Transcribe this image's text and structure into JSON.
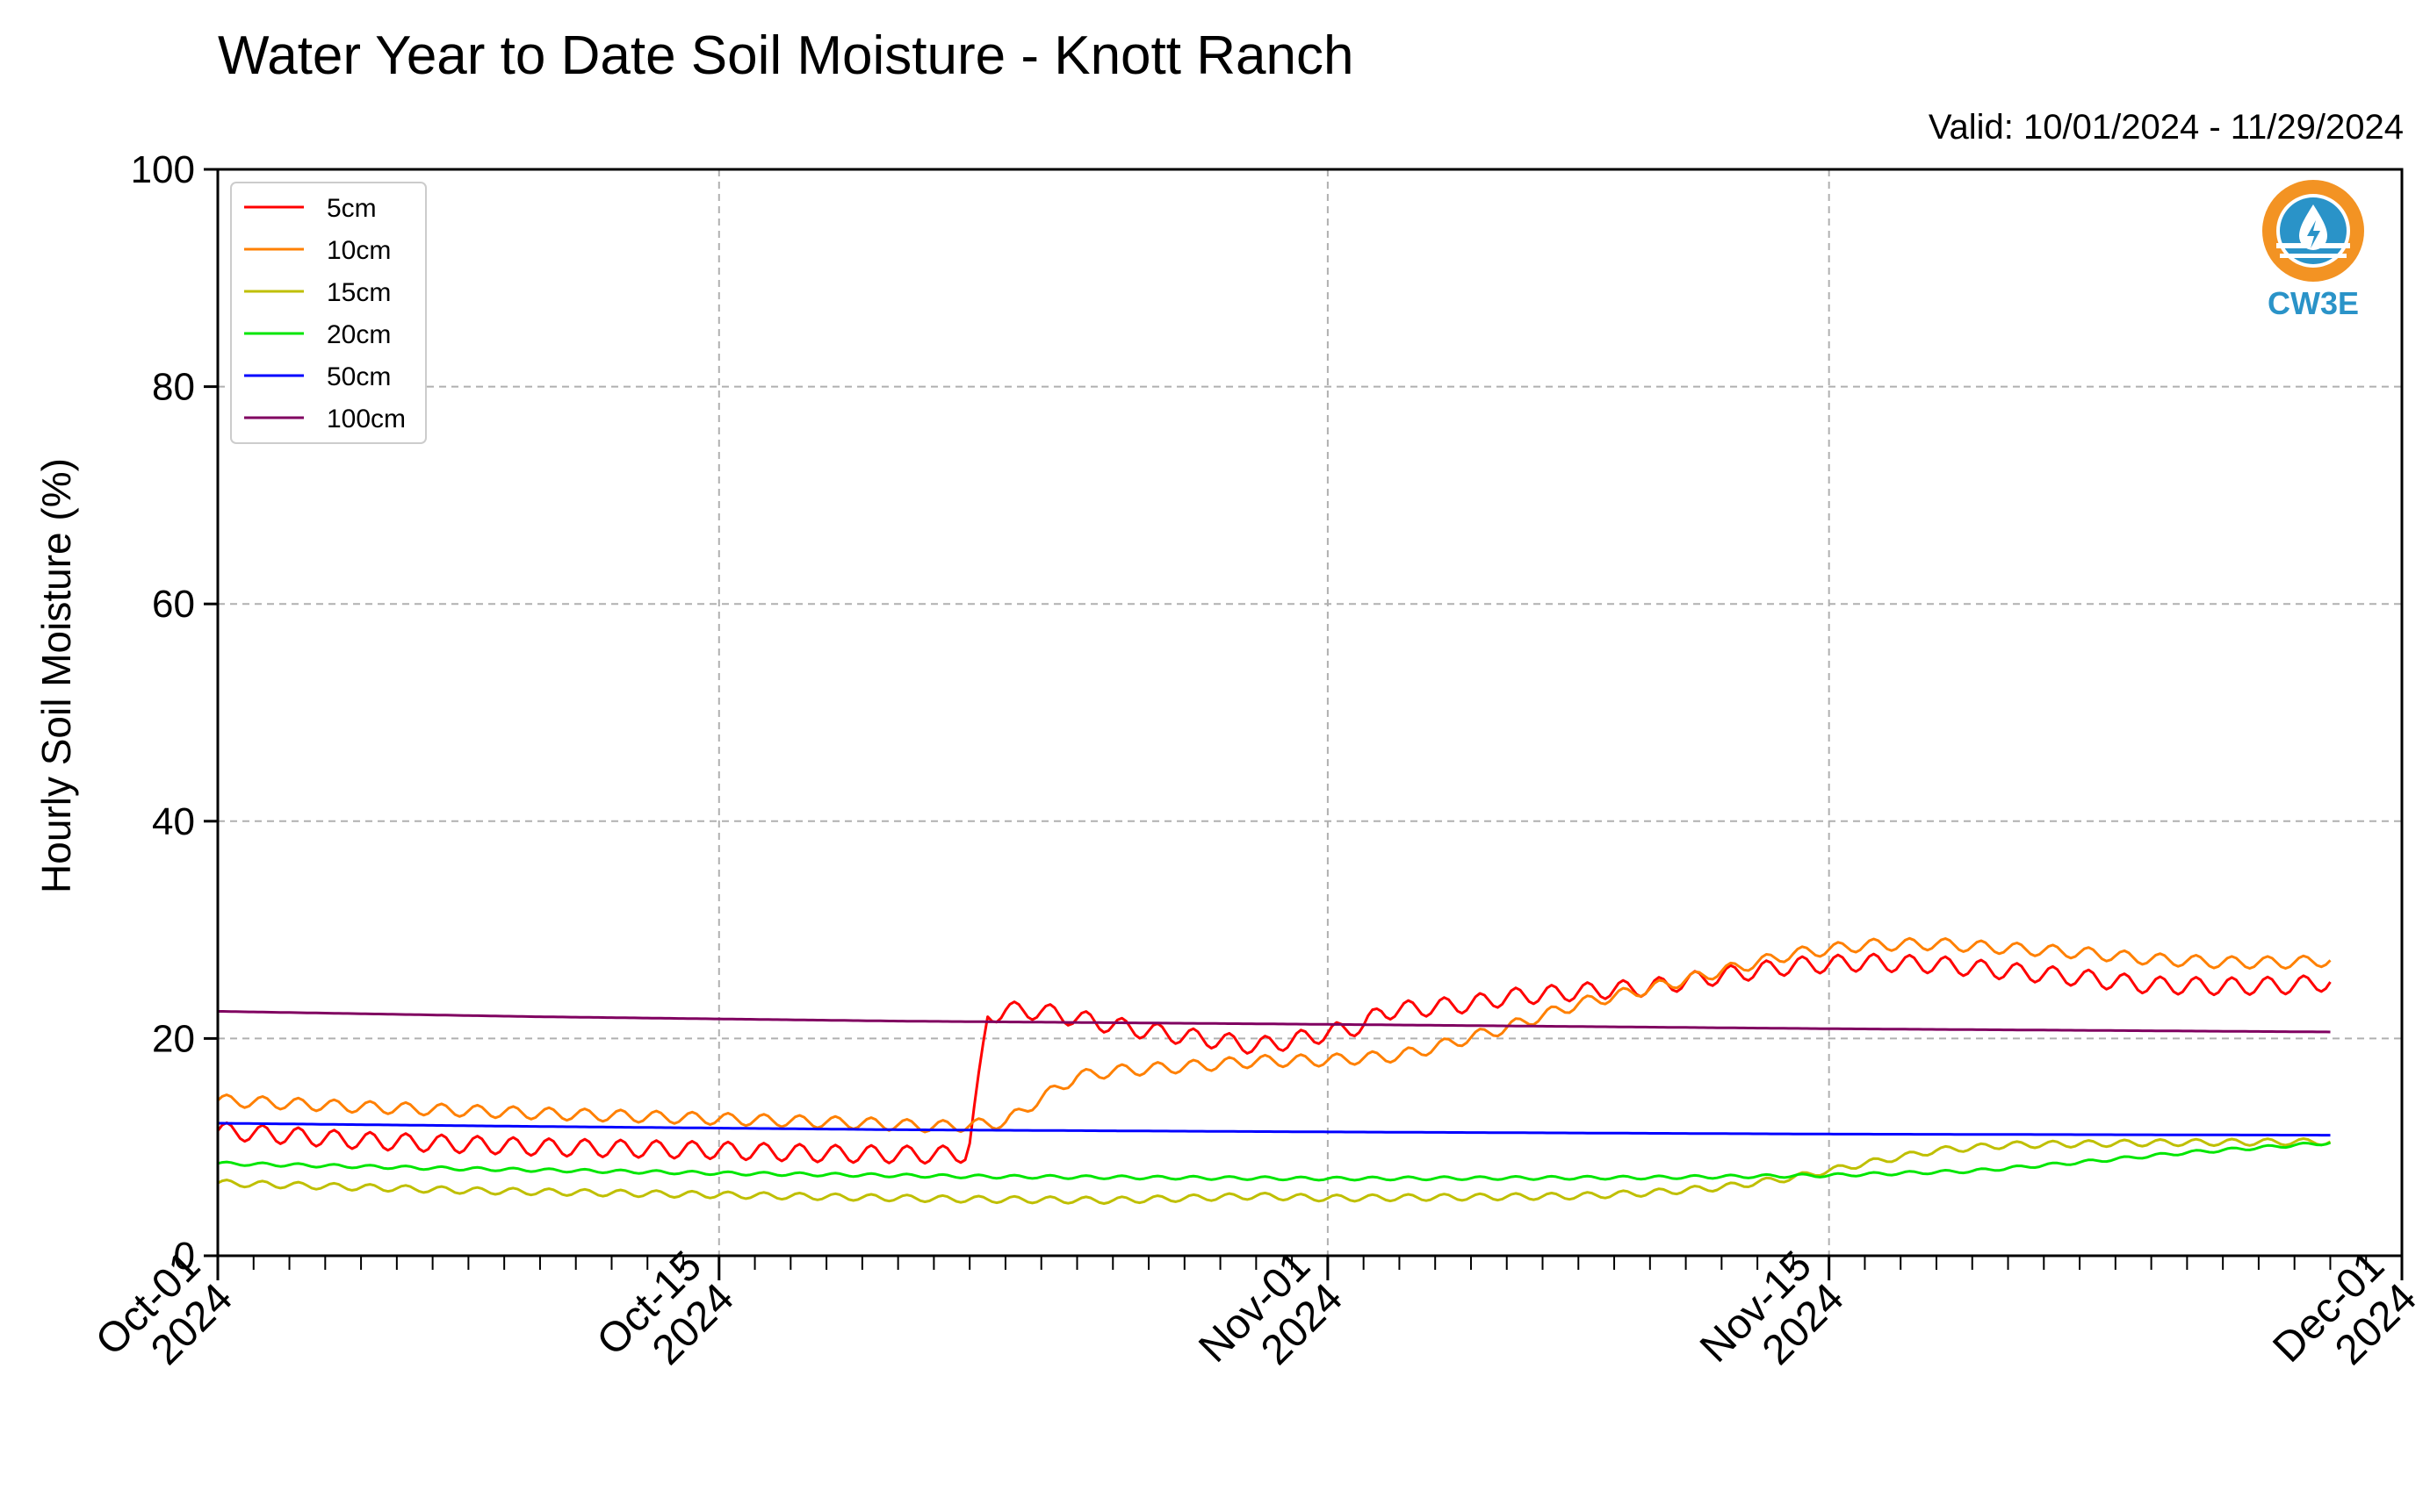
{
  "chart_data": {
    "type": "line",
    "title": "Water Year to Date Soil Moisture - Knott Ranch",
    "subtitle": "Valid: 10/01/2024 - 11/29/2024",
    "xlabel": "",
    "ylabel": "Hourly Soil Moisture (%)",
    "xlim": [
      "2024-10-01",
      "2024-12-01"
    ],
    "ylim": [
      0,
      100
    ],
    "yticks": [
      0,
      20,
      40,
      60,
      80,
      100
    ],
    "xticks": [
      {
        "date": "2024-10-01",
        "line1": "Oct-01",
        "line2": "2024"
      },
      {
        "date": "2024-10-15",
        "line1": "Oct-15",
        "line2": "2024"
      },
      {
        "date": "2024-11-01",
        "line1": "Nov-01",
        "line2": "2024"
      },
      {
        "date": "2024-11-15",
        "line1": "Nov-15",
        "line2": "2024"
      },
      {
        "date": "2024-12-01",
        "line1": "Dec-01",
        "line2": "2024"
      }
    ],
    "grid": true,
    "legend_position": "top-left",
    "logo": {
      "text": "CW3E",
      "colors": {
        "orange": "#f39323",
        "blue": "#2a93c8"
      }
    },
    "series": [
      {
        "name": "5cm",
        "color": "#ff0000",
        "diurnal_amplitude": 0.8,
        "points": [
          {
            "x": "2024-10-01",
            "y": 11.5
          },
          {
            "x": "2024-10-05",
            "y": 10.6
          },
          {
            "x": "2024-10-10",
            "y": 10.0
          },
          {
            "x": "2024-10-15",
            "y": 9.7
          },
          {
            "x": "2024-10-18",
            "y": 9.4
          },
          {
            "x": "2024-10-21",
            "y": 9.3
          },
          {
            "x": "2024-10-21T23:00",
            "y": 9.4
          },
          {
            "x": "2024-10-22T06:00",
            "y": 16.0
          },
          {
            "x": "2024-10-22T12:00",
            "y": 22.0
          },
          {
            "x": "2024-10-23",
            "y": 22.6
          },
          {
            "x": "2024-10-24",
            "y": 22.5
          },
          {
            "x": "2024-10-26",
            "y": 21.2
          },
          {
            "x": "2024-10-28",
            "y": 20.2
          },
          {
            "x": "2024-10-29",
            "y": 19.8
          },
          {
            "x": "2024-10-30",
            "y": 19.3
          },
          {
            "x": "2024-10-31",
            "y": 19.8
          },
          {
            "x": "2024-11-01",
            "y": 20.5
          },
          {
            "x": "2024-11-02",
            "y": 21.2
          },
          {
            "x": "2024-11-02T12:00",
            "y": 22.5
          },
          {
            "x": "2024-11-04",
            "y": 22.9
          },
          {
            "x": "2024-11-05",
            "y": 23.2
          },
          {
            "x": "2024-11-06",
            "y": 23.8
          },
          {
            "x": "2024-11-08",
            "y": 24.3
          },
          {
            "x": "2024-11-10",
            "y": 24.7
          },
          {
            "x": "2024-11-12",
            "y": 25.8
          },
          {
            "x": "2024-11-14",
            "y": 26.7
          },
          {
            "x": "2024-11-16",
            "y": 27.0
          },
          {
            "x": "2024-11-18",
            "y": 26.8
          },
          {
            "x": "2024-11-20",
            "y": 26.2
          },
          {
            "x": "2024-11-22",
            "y": 25.6
          },
          {
            "x": "2024-11-24",
            "y": 24.9
          },
          {
            "x": "2024-11-26",
            "y": 24.8
          },
          {
            "x": "2024-11-28",
            "y": 24.9
          },
          {
            "x": "2024-11-29",
            "y": 25.2
          }
        ]
      },
      {
        "name": "10cm",
        "color": "#ff8000",
        "diurnal_amplitude": 0.55,
        "points": [
          {
            "x": "2024-10-01",
            "y": 14.3
          },
          {
            "x": "2024-10-05",
            "y": 13.7
          },
          {
            "x": "2024-10-10",
            "y": 13.1
          },
          {
            "x": "2024-10-15",
            "y": 12.6
          },
          {
            "x": "2024-10-19",
            "y": 12.2
          },
          {
            "x": "2024-10-21",
            "y": 11.9
          },
          {
            "x": "2024-10-22",
            "y": 12.0
          },
          {
            "x": "2024-10-23",
            "y": 12.3
          },
          {
            "x": "2024-10-24",
            "y": 14.5
          },
          {
            "x": "2024-10-25",
            "y": 16.5
          },
          {
            "x": "2024-10-26",
            "y": 17.0
          },
          {
            "x": "2024-10-28",
            "y": 17.4
          },
          {
            "x": "2024-10-30",
            "y": 17.9
          },
          {
            "x": "2024-11-01",
            "y": 18.0
          },
          {
            "x": "2024-11-03",
            "y": 18.4
          },
          {
            "x": "2024-11-04",
            "y": 19.2
          },
          {
            "x": "2024-11-06",
            "y": 21.0
          },
          {
            "x": "2024-11-08",
            "y": 23.2
          },
          {
            "x": "2024-11-10",
            "y": 24.6
          },
          {
            "x": "2024-11-12",
            "y": 26.2
          },
          {
            "x": "2024-11-14",
            "y": 27.8
          },
          {
            "x": "2024-11-16",
            "y": 28.6
          },
          {
            "x": "2024-11-18",
            "y": 28.7
          },
          {
            "x": "2024-11-20",
            "y": 28.3
          },
          {
            "x": "2024-11-22",
            "y": 27.9
          },
          {
            "x": "2024-11-24",
            "y": 27.3
          },
          {
            "x": "2024-11-26",
            "y": 27.0
          },
          {
            "x": "2024-11-28",
            "y": 27.0
          },
          {
            "x": "2024-11-29",
            "y": 27.2
          }
        ]
      },
      {
        "name": "15cm",
        "color": "#bfbf00",
        "diurnal_amplitude": 0.3,
        "points": [
          {
            "x": "2024-10-01",
            "y": 6.7
          },
          {
            "x": "2024-10-08",
            "y": 6.0
          },
          {
            "x": "2024-10-15",
            "y": 5.6
          },
          {
            "x": "2024-10-22",
            "y": 5.2
          },
          {
            "x": "2024-10-26",
            "y": 5.1
          },
          {
            "x": "2024-10-30",
            "y": 5.5
          },
          {
            "x": "2024-11-01",
            "y": 5.3
          },
          {
            "x": "2024-11-05",
            "y": 5.4
          },
          {
            "x": "2024-11-08",
            "y": 5.5
          },
          {
            "x": "2024-11-10",
            "y": 5.8
          },
          {
            "x": "2024-11-12",
            "y": 6.3
          },
          {
            "x": "2024-11-14",
            "y": 7.2
          },
          {
            "x": "2024-11-16",
            "y": 8.5
          },
          {
            "x": "2024-11-18",
            "y": 9.7
          },
          {
            "x": "2024-11-20",
            "y": 10.2
          },
          {
            "x": "2024-11-24",
            "y": 10.4
          },
          {
            "x": "2024-11-29",
            "y": 10.5
          }
        ]
      },
      {
        "name": "20cm",
        "color": "#00e600",
        "diurnal_amplitude": 0.15,
        "points": [
          {
            "x": "2024-10-01",
            "y": 8.5
          },
          {
            "x": "2024-10-08",
            "y": 8.0
          },
          {
            "x": "2024-10-15",
            "y": 7.6
          },
          {
            "x": "2024-10-22",
            "y": 7.3
          },
          {
            "x": "2024-11-01",
            "y": 7.1
          },
          {
            "x": "2024-11-10",
            "y": 7.2
          },
          {
            "x": "2024-11-15",
            "y": 7.4
          },
          {
            "x": "2024-11-19",
            "y": 7.8
          },
          {
            "x": "2024-11-22",
            "y": 8.6
          },
          {
            "x": "2024-11-25",
            "y": 9.5
          },
          {
            "x": "2024-11-29",
            "y": 10.4
          }
        ]
      },
      {
        "name": "50cm",
        "color": "#0000ff",
        "diurnal_amplitude": 0,
        "points": [
          {
            "x": "2024-10-01",
            "y": 12.2
          },
          {
            "x": "2024-10-10",
            "y": 11.9
          },
          {
            "x": "2024-10-20",
            "y": 11.6
          },
          {
            "x": "2024-11-01",
            "y": 11.4
          },
          {
            "x": "2024-11-15",
            "y": 11.2
          },
          {
            "x": "2024-11-29",
            "y": 11.1
          }
        ]
      },
      {
        "name": "100cm",
        "color": "#800060",
        "diurnal_amplitude": 0,
        "points": [
          {
            "x": "2024-10-01",
            "y": 22.5
          },
          {
            "x": "2024-10-10",
            "y": 22.0
          },
          {
            "x": "2024-10-20",
            "y": 21.6
          },
          {
            "x": "2024-11-01",
            "y": 21.3
          },
          {
            "x": "2024-11-15",
            "y": 20.9
          },
          {
            "x": "2024-11-29",
            "y": 20.6
          }
        ]
      }
    ]
  }
}
